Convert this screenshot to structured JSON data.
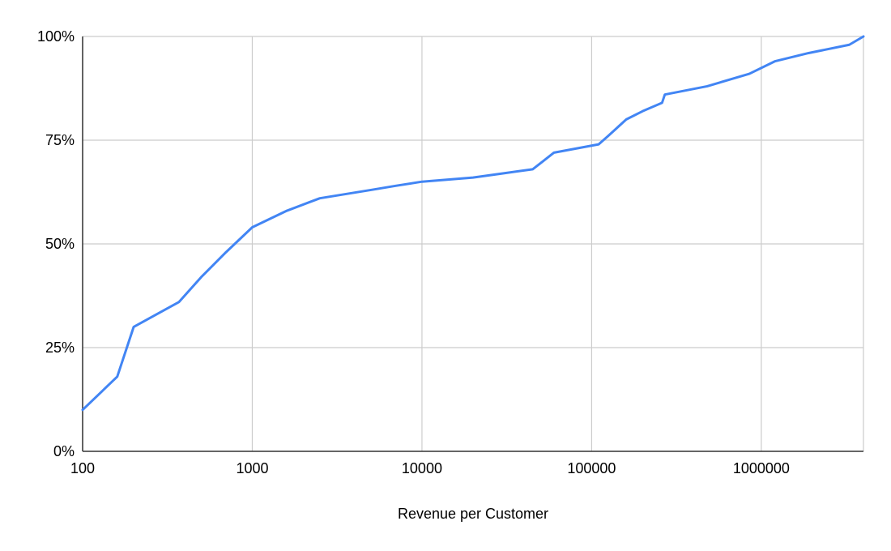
{
  "chart_data": {
    "type": "line",
    "title": "",
    "xlabel": "Revenue per Customer",
    "ylabel": "",
    "x_scale": "log",
    "xlim": [
      100,
      4000000
    ],
    "ylim": [
      0,
      100
    ],
    "x_ticks": [
      100,
      1000,
      10000,
      100000,
      1000000
    ],
    "x_tick_labels": [
      "100",
      "1000",
      "10000",
      "100000",
      "1000000"
    ],
    "y_ticks": [
      0,
      25,
      50,
      75,
      100
    ],
    "y_tick_labels": [
      "0%",
      "25%",
      "50%",
      "75%",
      "100%"
    ],
    "grid": true,
    "legend": "none",
    "series": [
      {
        "color": "#4285f4",
        "x": [
          100,
          160,
          200,
          370,
          500,
          700,
          1000,
          1600,
          2500,
          5000,
          7000,
          10000,
          20000,
          30000,
          45000,
          52000,
          60000,
          110000,
          125000,
          160000,
          200000,
          260000,
          270000,
          480000,
          850000,
          1200000,
          1900000,
          3300000,
          4000000
        ],
        "y": [
          10,
          18,
          30,
          36,
          42,
          48,
          54,
          58,
          61,
          63,
          64,
          65,
          66,
          67,
          68,
          70,
          72,
          74,
          76,
          80,
          82,
          84,
          86,
          88,
          91,
          94,
          96,
          98,
          100
        ]
      }
    ]
  }
}
